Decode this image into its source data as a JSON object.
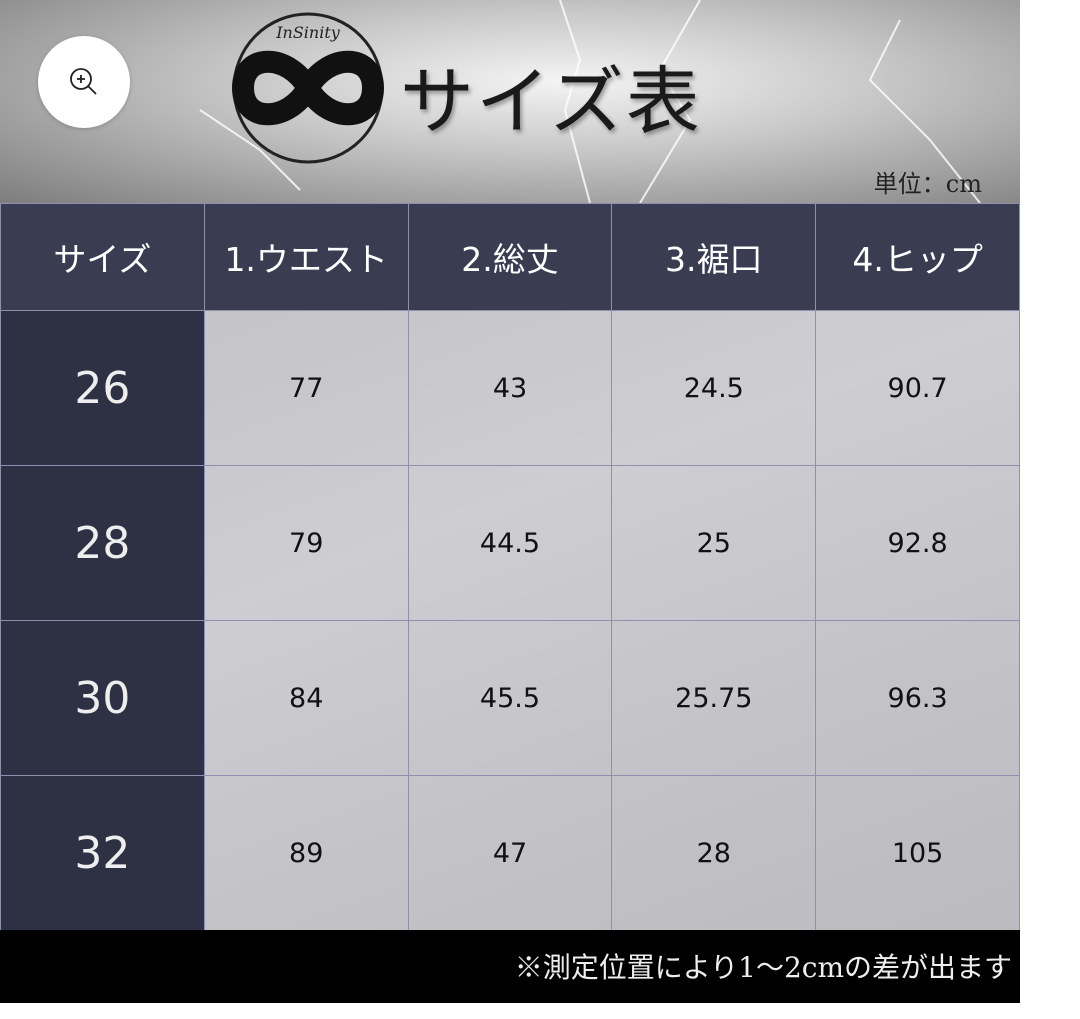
{
  "zoom_button": {
    "icon": "zoom-in-icon"
  },
  "banner": {
    "logo_text": "InSinity",
    "title": "サイズ表",
    "unit": "単位：cm"
  },
  "table": {
    "headers": [
      "サイズ",
      "1.ウエスト",
      "2.総丈",
      "3.裾口",
      "4.ヒップ"
    ],
    "rows": [
      [
        "26",
        "77",
        "43",
        "24.5",
        "90.7"
      ],
      [
        "28",
        "79",
        "44.5",
        "25",
        "92.8"
      ],
      [
        "30",
        "84",
        "45.5",
        "25.75",
        "96.3"
      ],
      [
        "32",
        "89",
        "47",
        "28",
        "105"
      ]
    ]
  },
  "footer": {
    "note": "※測定位置により1～2cmの差が出ます"
  },
  "colors": {
    "header_bg": "#3a3d52",
    "size_col_bg": "#2e3044",
    "footer_bg": "#000000"
  }
}
